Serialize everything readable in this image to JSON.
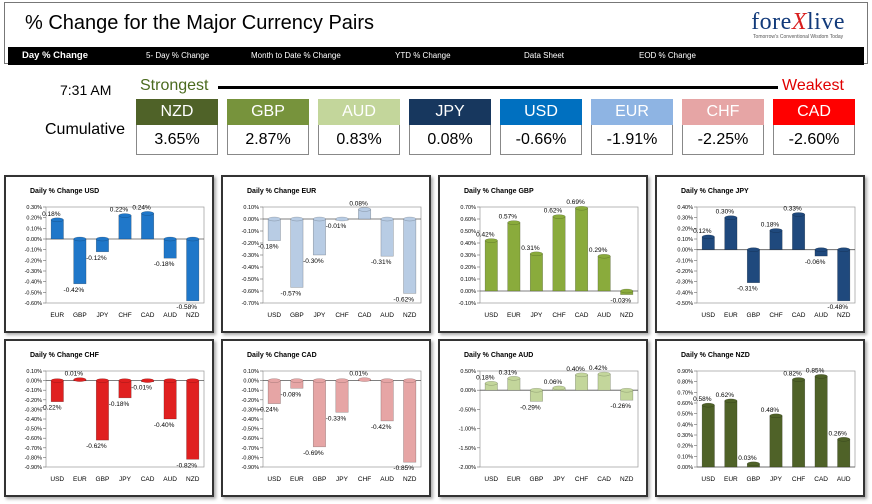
{
  "header": {
    "title": "% Change for the Major Currency Pairs"
  },
  "logo": {
    "name_prefix": "fore",
    "name_x": "X",
    "name_suffix": "live",
    "tagline": "Tomorrow's Conventional Wisdom Today"
  },
  "nav": {
    "items": [
      "Day % Change",
      "5- Day % Change",
      "Month to Date % Change",
      "YTD % Change",
      "Data Sheet",
      "EOD % Change"
    ]
  },
  "ranking": {
    "time": "7:31 AM",
    "row_label": "Cumulative",
    "strongest_label": "Strongest",
    "weakest_label": "Weakest",
    "pairs": [
      {
        "code": "NZD",
        "value": "3.65%",
        "color": "#4f6228"
      },
      {
        "code": "GBP",
        "value": "2.87%",
        "color": "#77933c"
      },
      {
        "code": "AUD",
        "value": "0.83%",
        "color": "#c3d69b"
      },
      {
        "code": "JPY",
        "value": "0.08%",
        "color": "#17375e"
      },
      {
        "code": "USD",
        "value": "-0.66%",
        "color": "#0070c0"
      },
      {
        "code": "EUR",
        "value": "-1.91%",
        "color": "#8eb4e3"
      },
      {
        "code": "CHF",
        "value": "-2.25%",
        "color": "#e6a5a5"
      },
      {
        "code": "CAD",
        "value": "-2.60%",
        "color": "#ff0000"
      }
    ]
  },
  "chart_data": [
    {
      "type": "bar",
      "title": "Daily % Change USD",
      "color": "#1f77c9",
      "categories": [
        "EUR",
        "GBP",
        "JPY",
        "CHF",
        "CAD",
        "AUD",
        "NZD"
      ],
      "values": [
        0.18,
        -0.42,
        -0.12,
        0.22,
        0.24,
        -0.18,
        -0.58
      ],
      "labels": [
        "0.18%",
        "-0.42%",
        "-0.12%",
        "0.22%",
        "0.24%",
        "-0.18%",
        "-0.58%"
      ],
      "ylim": [
        -0.6,
        0.3
      ],
      "ticks": [
        "0.30%",
        "0.20%",
        "0.10%",
        "0.00%",
        "-0.10%",
        "-0.20%",
        "-0.30%",
        "-0.40%",
        "-0.50%",
        "-0.60%"
      ]
    },
    {
      "type": "bar",
      "title": "Daily % Change EUR",
      "color": "#b8cce4",
      "categories": [
        "USD",
        "GBP",
        "JPY",
        "CHF",
        "CAD",
        "AUD",
        "NZD"
      ],
      "values": [
        -0.18,
        -0.57,
        -0.3,
        -0.01,
        0.08,
        -0.31,
        -0.62
      ],
      "labels": [
        "-0.18%",
        "-0.57%",
        "-0.30%",
        "-0.01%",
        "0.08%",
        "-0.31%",
        "-0.62%"
      ],
      "ylim": [
        -0.7,
        0.1
      ],
      "ticks": [
        "0.10%",
        "0.00%",
        "-0.10%",
        "-0.20%",
        "-0.30%",
        "-0.40%",
        "-0.50%",
        "-0.60%",
        "-0.70%"
      ]
    },
    {
      "type": "bar",
      "title": "Daily % Change GBP",
      "color": "#8aab3c",
      "categories": [
        "USD",
        "EUR",
        "JPY",
        "CHF",
        "CAD",
        "AUD",
        "NZD"
      ],
      "values": [
        0.42,
        0.57,
        0.31,
        0.62,
        0.69,
        0.29,
        -0.03
      ],
      "labels": [
        "0.42%",
        "0.57%",
        "0.31%",
        "0.62%",
        "0.69%",
        "0.29%",
        "-0.03%"
      ],
      "ylim": [
        -0.1,
        0.7
      ],
      "ticks": [
        "0.70%",
        "0.60%",
        "0.50%",
        "0.40%",
        "0.30%",
        "0.20%",
        "0.10%",
        "0.00%",
        "-0.10%"
      ]
    },
    {
      "type": "bar",
      "title": "Daily % Change JPY",
      "color": "#1f497d",
      "categories": [
        "USD",
        "EUR",
        "GBP",
        "CHF",
        "CAD",
        "AUD",
        "NZD"
      ],
      "values": [
        0.12,
        0.3,
        -0.31,
        0.18,
        0.33,
        -0.06,
        -0.48
      ],
      "labels": [
        "0.12%",
        "0.30%",
        "-0.31%",
        "0.18%",
        "0.33%",
        "-0.06%",
        "-0.48%"
      ],
      "ylim": [
        -0.5,
        0.4
      ],
      "ticks": [
        "0.40%",
        "0.30%",
        "0.20%",
        "0.10%",
        "0.00%",
        "-0.10%",
        "-0.20%",
        "-0.30%",
        "-0.40%",
        "-0.50%"
      ]
    },
    {
      "type": "bar",
      "title": "Daily % Change CHF",
      "color": "#e02020",
      "categories": [
        "USD",
        "EUR",
        "GBP",
        "JPY",
        "CAD",
        "AUD",
        "NZD"
      ],
      "values": [
        -0.22,
        0.01,
        -0.62,
        -0.18,
        -0.01,
        -0.4,
        -0.82
      ],
      "labels": [
        "-0.22%",
        "0.01%",
        "-0.62%",
        "-0.18%",
        "-0.01%",
        "-0.40%",
        "-0.82%"
      ],
      "ylim": [
        -0.9,
        0.1
      ],
      "ticks": [
        "0.10%",
        "0.00%",
        "-0.10%",
        "-0.20%",
        "-0.30%",
        "-0.40%",
        "-0.50%",
        "-0.60%",
        "-0.70%",
        "-0.80%",
        "-0.90%"
      ]
    },
    {
      "type": "bar",
      "title": "Daily % Change CAD",
      "color": "#e6a5a5",
      "categories": [
        "USD",
        "EUR",
        "GBP",
        "JPY",
        "CHF",
        "AUD",
        "NZD"
      ],
      "values": [
        -0.24,
        -0.08,
        -0.69,
        -0.33,
        0.01,
        -0.42,
        -0.85
      ],
      "labels": [
        "-0.24%",
        "-0.08%",
        "-0.69%",
        "-0.33%",
        "0.01%",
        "-0.42%",
        "-0.85%"
      ],
      "ylim": [
        -0.9,
        0.1
      ],
      "ticks": [
        "0.10%",
        "0.00%",
        "-0.10%",
        "-0.20%",
        "-0.30%",
        "-0.40%",
        "-0.50%",
        "-0.60%",
        "-0.70%",
        "-0.80%",
        "-0.90%"
      ]
    },
    {
      "type": "bar",
      "title": "Daily % Change AUD",
      "color": "#c3d69b",
      "categories": [
        "USD",
        "EUR",
        "GBP",
        "JPY",
        "CHF",
        "CAD",
        "NZD"
      ],
      "values": [
        0.18,
        0.31,
        -0.29,
        0.06,
        0.4,
        0.42,
        -0.26
      ],
      "labels": [
        "0.18%",
        "0.31%",
        "-0.29%",
        "0.06%",
        "0.40%",
        "0.42%",
        "-0.26%"
      ],
      "ylim": [
        -2.0,
        0.5
      ],
      "ticks": [
        "0.50%",
        "0.00%",
        "-0.50%",
        "-1.00%",
        "-1.50%",
        "-2.00%"
      ]
    },
    {
      "type": "bar",
      "title": "Daily % Change NZD",
      "color": "#4f6228",
      "categories": [
        "USD",
        "EUR",
        "GBP",
        "JPY",
        "CHF",
        "CAD",
        "AUD"
      ],
      "values": [
        0.58,
        0.62,
        0.03,
        0.48,
        0.82,
        0.85,
        0.26
      ],
      "labels": [
        "0.58%",
        "0.62%",
        "0.03%",
        "0.48%",
        "0.82%",
        "0.85%",
        "0.26%"
      ],
      "ylim": [
        0,
        0.9
      ],
      "ticks": [
        "0.90%",
        "0.80%",
        "0.70%",
        "0.60%",
        "0.50%",
        "0.40%",
        "0.30%",
        "0.20%",
        "0.10%",
        "0.00%"
      ]
    }
  ]
}
